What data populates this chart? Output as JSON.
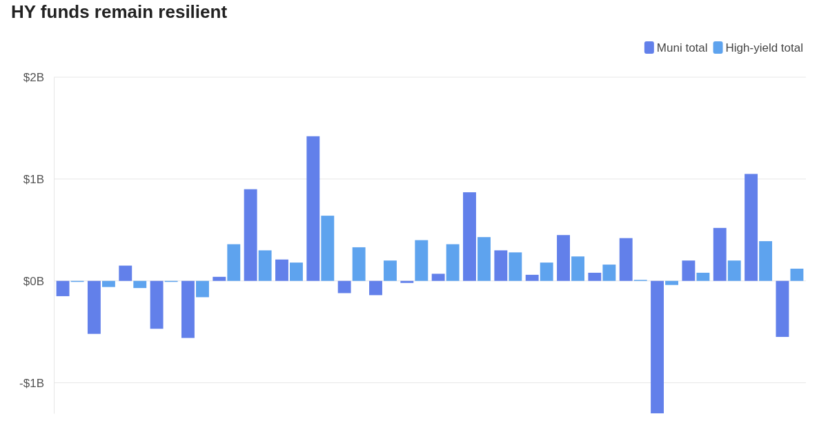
{
  "chart_data": {
    "type": "bar",
    "title": "HY funds remain resilient",
    "categories": [
      null,
      null,
      null,
      null,
      null,
      null,
      null,
      null,
      null,
      null,
      null,
      null,
      null,
      null,
      null,
      null,
      null,
      null,
      null,
      null,
      null,
      null,
      null,
      null
    ],
    "series": [
      {
        "name": "Muni total",
        "color": "#6280ea",
        "values": [
          -0.15,
          -0.52,
          0.15,
          -0.47,
          -0.56,
          0.04,
          0.9,
          0.21,
          1.42,
          -0.12,
          -0.14,
          -0.02,
          0.07,
          0.87,
          0.3,
          0.06,
          0.45,
          0.08,
          0.42,
          -1.3,
          0.2,
          0.52,
          1.05,
          -0.55
        ]
      },
      {
        "name": "High-yield total",
        "color": "#5ea3ee",
        "values": [
          -0.01,
          -0.06,
          -0.07,
          -0.01,
          -0.16,
          0.36,
          0.3,
          0.18,
          0.64,
          0.33,
          0.2,
          0.4,
          0.36,
          0.43,
          0.28,
          0.18,
          0.24,
          0.16,
          0.01,
          -0.04,
          0.08,
          0.2,
          0.39,
          0.12
        ]
      }
    ],
    "ylim": [
      -1.3,
      2
    ],
    "yticks": [
      {
        "value": -1,
        "label": "-$1B"
      },
      {
        "value": 0,
        "label": "$0B"
      },
      {
        "value": 1,
        "label": "$1B"
      },
      {
        "value": 2,
        "label": "$2B"
      }
    ],
    "grid": "y",
    "legend": "top right"
  }
}
